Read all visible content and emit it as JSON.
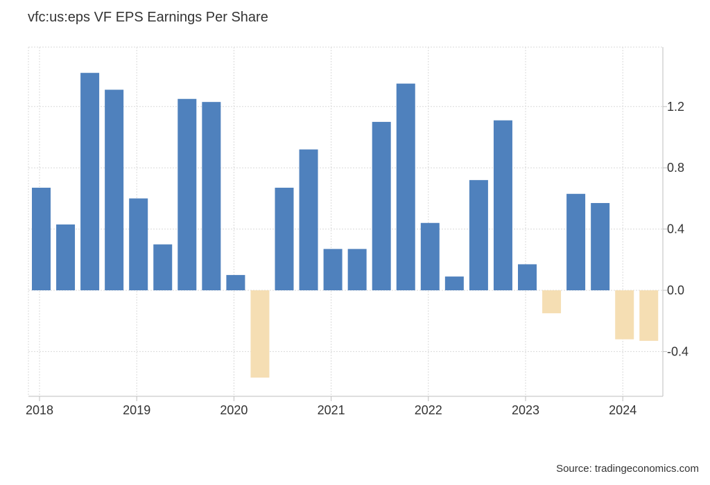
{
  "title": "vfc:us:eps VF EPS Earnings Per Share",
  "source": "Source: tradingeconomics.com",
  "colors": {
    "positive": "#4f81bd",
    "negative": "#f5deb3"
  },
  "chart_data": {
    "type": "bar",
    "title": "vfc:us:eps VF EPS Earnings Per Share",
    "xlabel": "",
    "ylabel": "",
    "grid": true,
    "ylim": [
      -0.7,
      1.6
    ],
    "yticks": [
      1.2,
      0.8,
      0.4,
      0.0,
      -0.4
    ],
    "ytick_labels": [
      "1.2",
      "0.8",
      "0.4",
      "0.0",
      "-0.4"
    ],
    "xticks": [
      "2018",
      "2019",
      "2020",
      "2021",
      "2022",
      "2023",
      "2024"
    ],
    "categories": [
      "2018 Q1",
      "2018 Q2",
      "2018 Q3",
      "2018 Q4",
      "2019 Q1",
      "2019 Q2",
      "2019 Q3",
      "2019 Q4",
      "2020 Q1",
      "2020 Q2",
      "2020 Q3",
      "2020 Q4",
      "2021 Q1",
      "2021 Q2",
      "2021 Q3",
      "2021 Q4",
      "2022 Q1",
      "2022 Q2",
      "2022 Q3",
      "2022 Q4",
      "2023 Q1",
      "2023 Q2",
      "2023 Q3",
      "2023 Q4",
      "2024 Q1",
      "2024 Q2"
    ],
    "values": [
      0.67,
      0.43,
      1.42,
      1.31,
      0.6,
      0.3,
      1.25,
      1.23,
      0.1,
      -0.57,
      0.67,
      0.92,
      0.27,
      0.27,
      1.1,
      1.35,
      0.44,
      0.09,
      0.72,
      1.11,
      0.17,
      -0.15,
      0.63,
      0.57,
      -0.32,
      -0.33
    ]
  }
}
